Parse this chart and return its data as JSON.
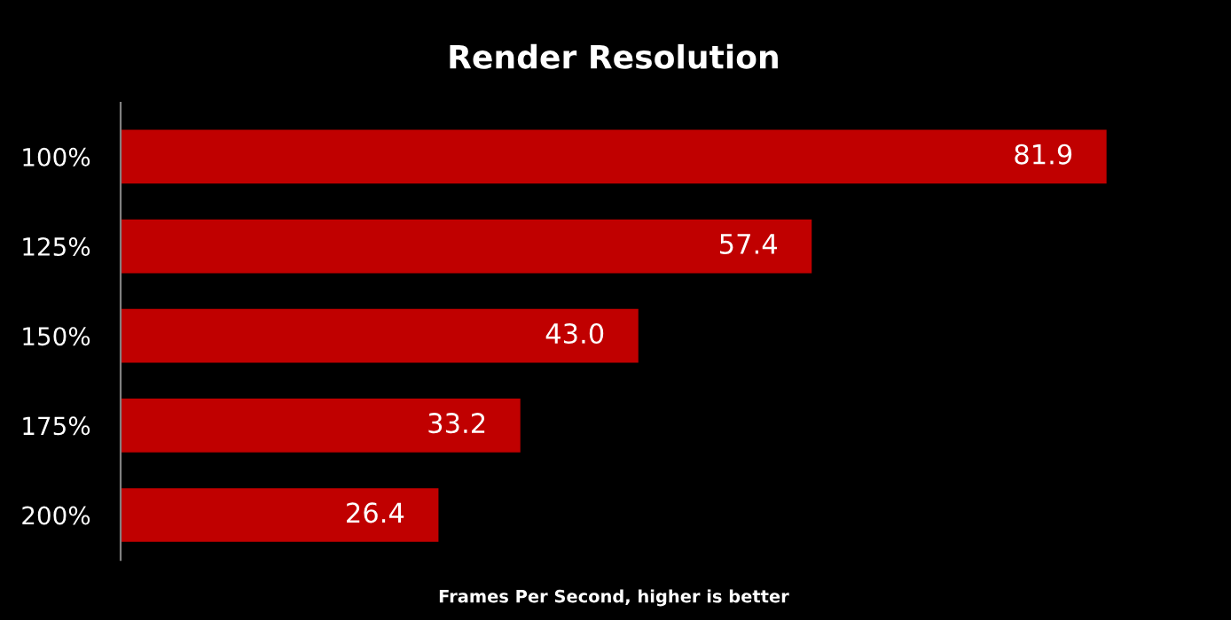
{
  "chart_data": {
    "type": "bar",
    "orientation": "horizontal",
    "title": "Render Resolution",
    "xlabel": "Frames Per Second, higher is better",
    "categories": [
      "100%",
      "125%",
      "150%",
      "175%",
      "200%"
    ],
    "values": [
      81.9,
      57.4,
      43.0,
      33.2,
      26.4
    ],
    "color": "#c00000",
    "value_labels": [
      "81.9",
      "57.4",
      "43.0",
      "33.2",
      "26.4"
    ],
    "grid": false,
    "legend": false
  }
}
